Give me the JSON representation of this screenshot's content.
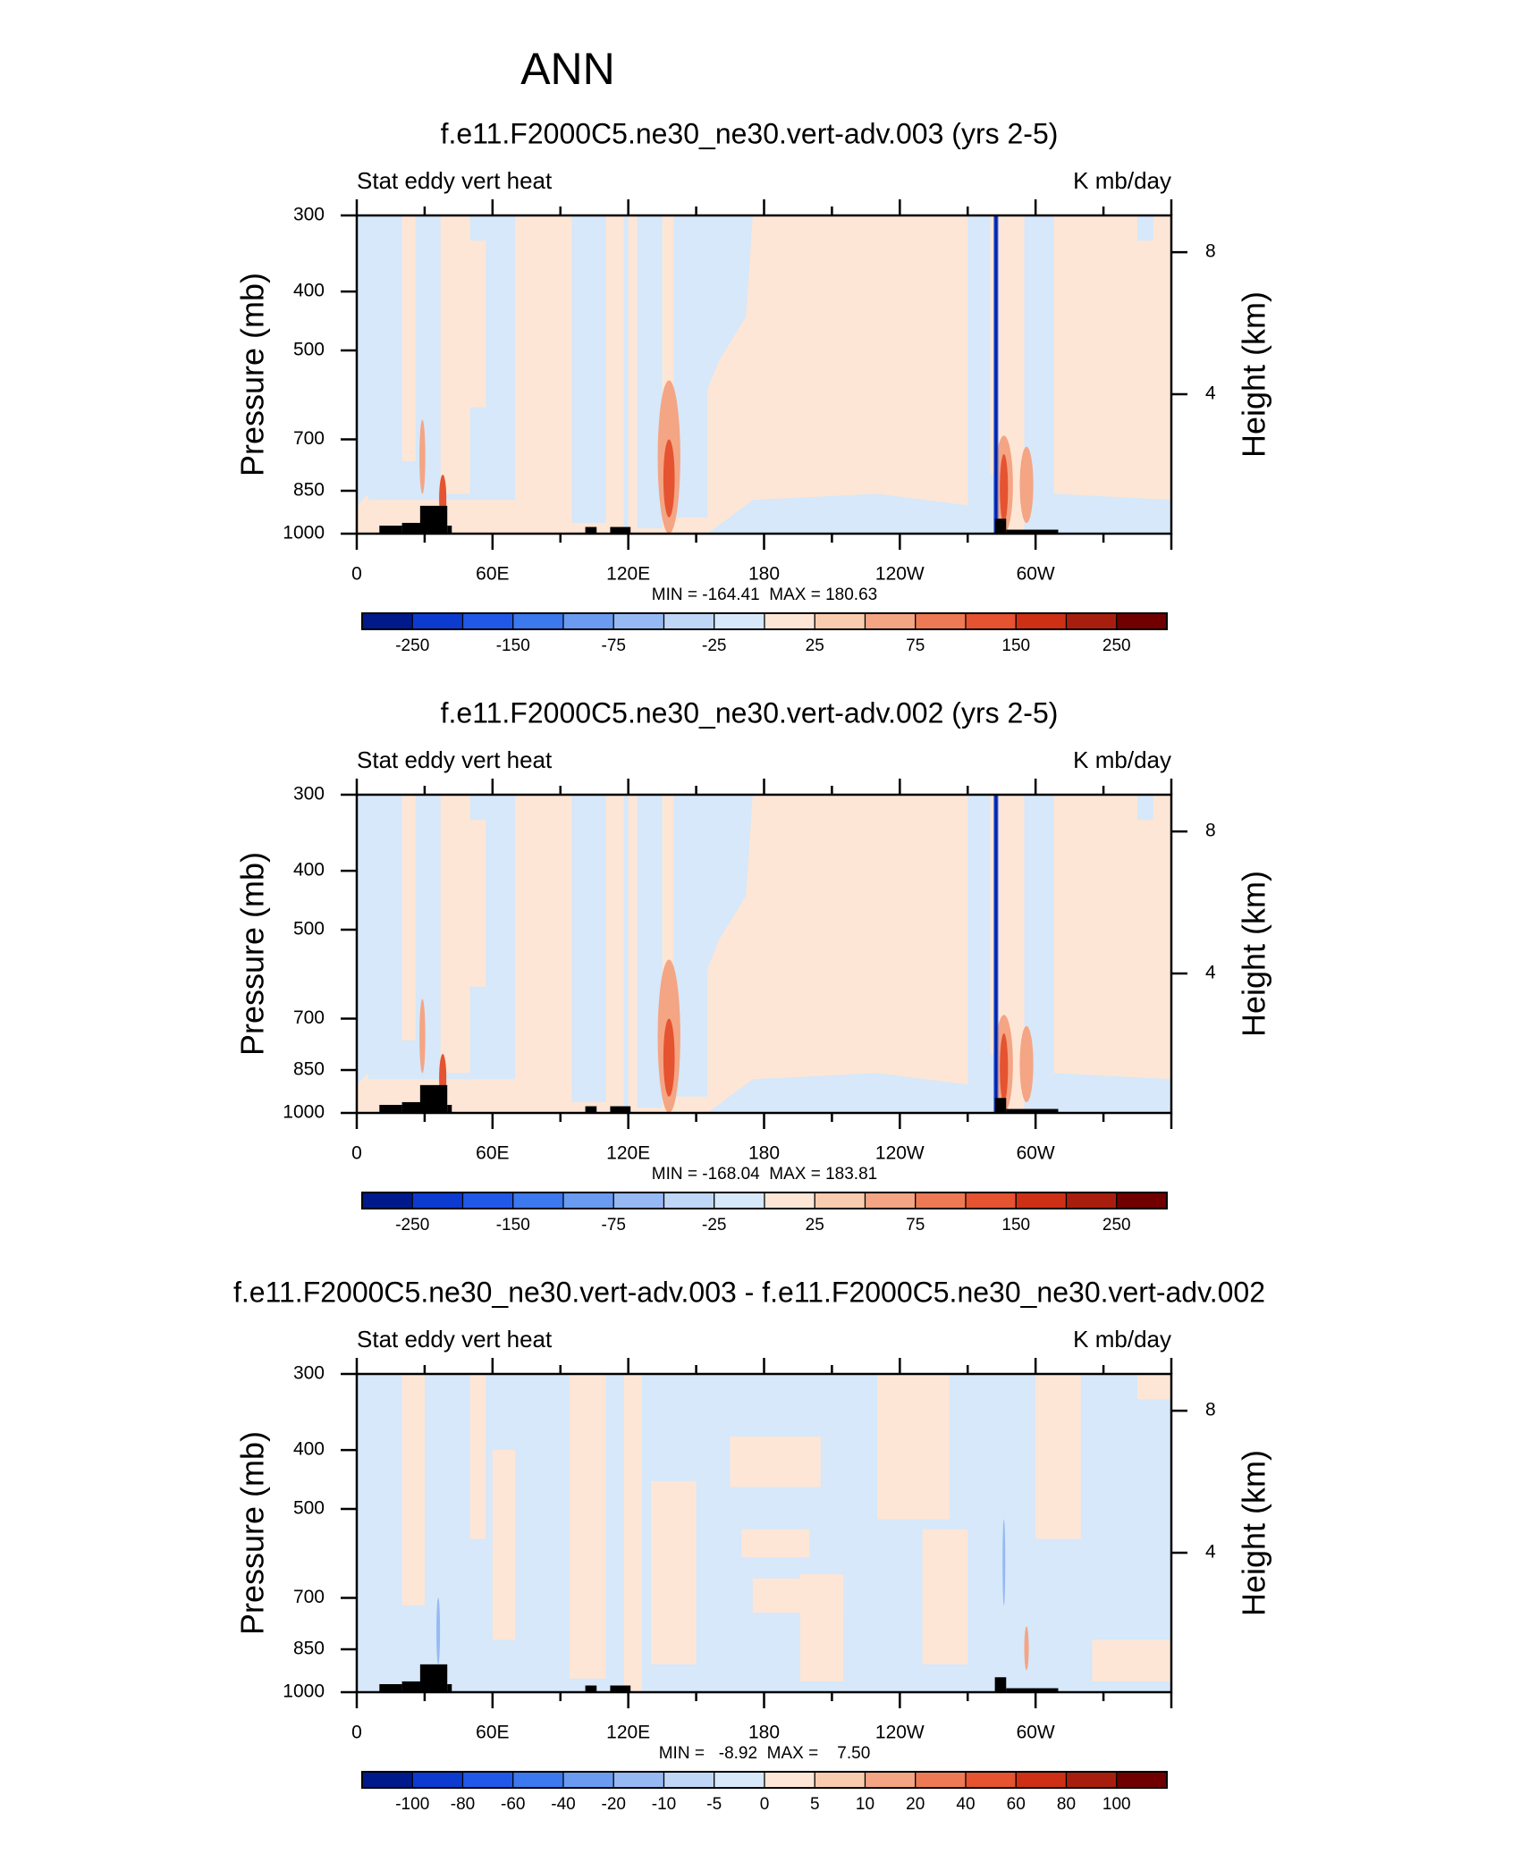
{
  "page_title": "ANN",
  "shared_axes": {
    "y_label": "Pressure (mb)",
    "y2_label": "Height (km)",
    "y_ticks": [
      300,
      400,
      500,
      700,
      850,
      1000
    ],
    "y2_ticks": [
      8,
      4
    ],
    "x_tick_labels": [
      "0",
      "60E",
      "120E",
      "180",
      "120W",
      "60W"
    ]
  },
  "chart_data": [
    {
      "type": "heatmap",
      "title": "f.e11.F2000C5.ne30_ne30.vert-adv.003 (yrs 2-5)",
      "left_label": "Stat eddy vert heat",
      "right_label": "K mb/day",
      "ylabel": "Pressure (mb)",
      "y2label": "Height (km)",
      "ylim": [
        1000,
        300
      ],
      "xlim": [
        0,
        360
      ],
      "y_log": true,
      "stats": "MIN = -164.41  MAX = 180.63",
      "min": -164.41,
      "max": 180.63,
      "colorbar_labels": [
        "-250",
        "-150",
        "-75",
        "-25",
        "25",
        "75",
        "150",
        "250"
      ]
    },
    {
      "type": "heatmap",
      "title": "f.e11.F2000C5.ne30_ne30.vert-adv.002 (yrs 2-5)",
      "left_label": "Stat eddy vert heat",
      "right_label": "K mb/day",
      "ylabel": "Pressure (mb)",
      "y2label": "Height (km)",
      "ylim": [
        1000,
        300
      ],
      "xlim": [
        0,
        360
      ],
      "y_log": true,
      "stats": "MIN = -168.04  MAX = 183.81",
      "min": -168.04,
      "max": 183.81,
      "colorbar_labels": [
        "-250",
        "-150",
        "-75",
        "-25",
        "25",
        "75",
        "150",
        "250"
      ]
    },
    {
      "type": "heatmap",
      "title": "f.e11.F2000C5.ne30_ne30.vert-adv.003 - f.e11.F2000C5.ne30_ne30.vert-adv.002",
      "left_label": "Stat eddy vert heat",
      "right_label": "K mb/day",
      "ylabel": "Pressure (mb)",
      "y2label": "Height (km)",
      "ylim": [
        1000,
        300
      ],
      "xlim": [
        0,
        360
      ],
      "y_log": true,
      "stats": "MIN =   -8.92  MAX =    7.50",
      "min": -8.92,
      "max": 7.5,
      "colorbar_labels": [
        "-100",
        "-80",
        "-60",
        "-40",
        "-20",
        "-10",
        "-5",
        "0",
        "5",
        "10",
        "20",
        "40",
        "60",
        "80",
        "100"
      ]
    }
  ],
  "colors": {
    "colorbar_16": [
      "#08209a",
      "#0d3bd0",
      "#2158e8",
      "#3c78ee",
      "#6a9bf0",
      "#97b9f3",
      "#bfd6f6",
      "#d6e8fa",
      "#fde6d6",
      "#f9ccb0",
      "#f4a584",
      "#ee7a55",
      "#e55330",
      "#ce3016",
      "#a81e0e",
      "#7f0a07"
    ],
    "colorbar_16_dark_blue": "#001a8c",
    "colorbar_16_dark_red": "#700000",
    "light_blue": "#d6e8fa",
    "light_orange": "#fde6d6",
    "terrain": "#000000"
  }
}
